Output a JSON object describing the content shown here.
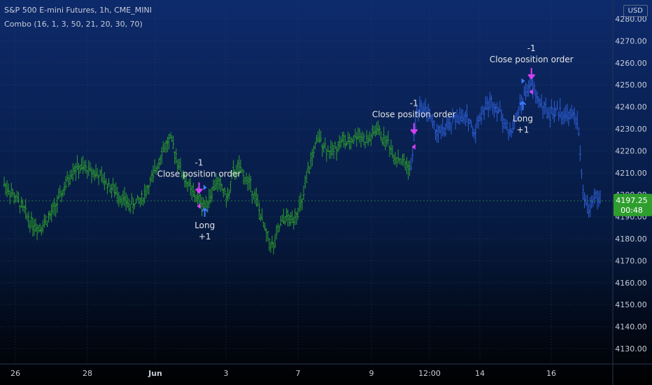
{
  "header": {
    "title": "S&P 500 E-mini Futures, 1h, CME_MINI",
    "indicator": "Combo (16, 1, 3, 50, 21, 20, 30, 70)",
    "currency": "USD"
  },
  "colors": {
    "bg_top": "#0d2a6b",
    "bg_bottom": "#000000",
    "up_bars": "#2e9e2e",
    "blue_bars": "#2d5fd6",
    "magenta": "#e040fb",
    "arrow_blue": "#3e7bff",
    "text": "#e6e6e6",
    "price_tag": "#2e9e2e"
  },
  "price_axis": {
    "ticks": [
      "4280.00",
      "4270.00",
      "4260.00",
      "4250.00",
      "4240.00",
      "4230.00",
      "4220.00",
      "4210.00",
      "4200.00",
      "4190.00",
      "4180.00",
      "4170.00",
      "4160.00",
      "4150.00",
      "4140.00",
      "4130.00"
    ],
    "last_price": "4197.25",
    "countdown": "00:48"
  },
  "time_axis": {
    "labels": [
      "26",
      "28",
      "Jun",
      "3",
      "7",
      "9",
      "12:00",
      "14",
      "16"
    ]
  },
  "chart_data": {
    "type": "bar",
    "instrument": "S&P 500 E-mini Futures",
    "interval": "1h",
    "ylim": [
      4125,
      4290
    ],
    "x_labels": [
      "26",
      "28",
      "Jun",
      "3",
      "7",
      "9",
      "12:00",
      "14",
      "16"
    ],
    "series": [
      {
        "name": "price",
        "waypoints": [
          [
            0,
            4205
          ],
          [
            3,
            4200
          ],
          [
            6,
            4195
          ],
          [
            9,
            4188
          ],
          [
            12,
            4185
          ],
          [
            16,
            4190
          ],
          [
            20,
            4200
          ],
          [
            24,
            4212
          ],
          [
            28,
            4212
          ],
          [
            32,
            4210
          ],
          [
            36,
            4205
          ],
          [
            40,
            4200
          ],
          [
            44,
            4195
          ],
          [
            48,
            4198
          ],
          [
            52,
            4208
          ],
          [
            55,
            4220
          ],
          [
            58,
            4225
          ],
          [
            60,
            4218
          ],
          [
            62,
            4210
          ],
          [
            64,
            4205
          ],
          [
            66,
            4200
          ],
          [
            68,
            4198
          ],
          [
            70,
            4195
          ],
          [
            72,
            4200
          ],
          [
            74,
            4206
          ],
          [
            76,
            4203
          ],
          [
            78,
            4198
          ],
          [
            80,
            4210
          ],
          [
            82,
            4212
          ],
          [
            84,
            4208
          ],
          [
            86,
            4204
          ],
          [
            88,
            4198
          ],
          [
            90,
            4188
          ],
          [
            92,
            4180
          ],
          [
            94,
            4176
          ],
          [
            96,
            4185
          ],
          [
            98,
            4190
          ],
          [
            100,
            4188
          ],
          [
            102,
            4192
          ],
          [
            104,
            4196
          ],
          [
            106,
            4210
          ],
          [
            108,
            4220
          ],
          [
            110,
            4226
          ],
          [
            112,
            4222
          ],
          [
            114,
            4219
          ],
          [
            116,
            4222
          ],
          [
            118,
            4225
          ],
          [
            120,
            4223
          ],
          [
            122,
            4226
          ],
          [
            124,
            4228
          ],
          [
            126,
            4224
          ],
          [
            128,
            4226
          ],
          [
            130,
            4230
          ],
          [
            132,
            4226
          ],
          [
            134,
            4224
          ],
          [
            136,
            4218
          ],
          [
            138,
            4216
          ],
          [
            140,
            4214
          ],
          [
            142,
            4212
          ],
          [
            144,
            4238
          ],
          [
            146,
            4240
          ],
          [
            148,
            4238
          ],
          [
            150,
            4230
          ],
          [
            152,
            4228
          ],
          [
            154,
            4230
          ],
          [
            156,
            4232
          ],
          [
            158,
            4236
          ],
          [
            160,
            4234
          ],
          [
            162,
            4235
          ],
          [
            164,
            4228
          ],
          [
            166,
            4236
          ],
          [
            168,
            4240
          ],
          [
            170,
            4242
          ],
          [
            172,
            4240
          ],
          [
            174,
            4235
          ],
          [
            176,
            4228
          ],
          [
            178,
            4232
          ],
          [
            180,
            4240
          ],
          [
            182,
            4247
          ],
          [
            184,
            4250
          ],
          [
            186,
            4244
          ],
          [
            188,
            4240
          ],
          [
            190,
            4237
          ],
          [
            192,
            4238
          ],
          [
            194,
            4238
          ],
          [
            196,
            4236
          ],
          [
            198,
            4236
          ],
          [
            200,
            4235
          ],
          [
            202,
            4200
          ],
          [
            204,
            4193
          ],
          [
            206,
            4200
          ],
          [
            208,
            4197
          ]
        ]
      }
    ],
    "annotations": [
      {
        "i": 68,
        "text": [
          "-1",
          "Close position order"
        ],
        "type": "close"
      },
      {
        "i": 70,
        "text": [
          "Long",
          "+1"
        ],
        "type": "long"
      },
      {
        "i": 143,
        "text": [
          "-1",
          "Close position order"
        ],
        "type": "close"
      },
      {
        "i": 181,
        "text": [
          "Long",
          "+1"
        ],
        "type": "long"
      },
      {
        "i": 184,
        "text": [
          "-1",
          "Close position order"
        ],
        "type": "close"
      }
    ],
    "blue_from": 142,
    "last_price": 4197.25
  }
}
